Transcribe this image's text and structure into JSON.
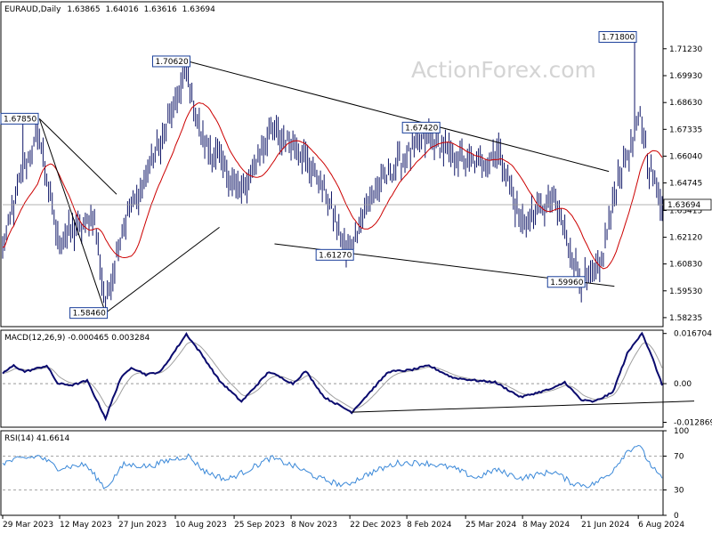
{
  "chart_data": [
    {
      "type": "ohlc",
      "symbol": "EURAUD",
      "timeframe": "Daily",
      "ohlc": [
        "1.63865",
        "1.64016",
        "1.63616",
        "1.63694"
      ],
      "watermark": "ActionForex.com",
      "ylim": [
        1.578,
        1.735
      ],
      "y_ticks": [
        "1.71230",
        "1.69930",
        "1.68630",
        "1.67335",
        "1.66040",
        "1.64745",
        "1.63415",
        "1.62120",
        "1.60830",
        "1.59530",
        "1.58235"
      ],
      "y_ticks_values": [
        1.7123,
        1.6993,
        1.6863,
        1.67335,
        1.6604,
        1.64745,
        1.63415,
        1.6212,
        1.6083,
        1.5953,
        1.58235
      ],
      "last_price": "1.63694",
      "last_price_value": 1.63694,
      "x_ticks": [
        "29 Mar 2023",
        "12 May 2023",
        "27 Jun 2023",
        "10 Aug 2023",
        "25 Sep 2023",
        "8 Nov 2023",
        "22 Dec 2023",
        "8 Feb 2024",
        "25 Mar 2024",
        "8 May 2024",
        "21 Jun 2024",
        "6 Aug 2024"
      ],
      "n_bars": 360,
      "key_points": [
        {
          "bar": 0,
          "close": 1.615
        },
        {
          "bar": 11,
          "close": 1.655
        },
        {
          "bar": 20,
          "close": 1.67
        },
        {
          "bar": 30,
          "close": 1.62
        },
        {
          "bar": 50,
          "close": 1.63
        },
        {
          "bar": 56,
          "close": 1.587
        },
        {
          "bar": 65,
          "close": 1.625
        },
        {
          "bar": 85,
          "close": 1.665
        },
        {
          "bar": 100,
          "close": 1.7
        },
        {
          "bar": 108,
          "close": 1.67
        },
        {
          "bar": 120,
          "close": 1.655
        },
        {
          "bar": 130,
          "close": 1.642
        },
        {
          "bar": 145,
          "close": 1.672
        },
        {
          "bar": 160,
          "close": 1.665
        },
        {
          "bar": 175,
          "close": 1.645
        },
        {
          "bar": 187,
          "close": 1.614
        },
        {
          "bar": 200,
          "close": 1.64
        },
        {
          "bar": 215,
          "close": 1.657
        },
        {
          "bar": 232,
          "close": 1.67
        },
        {
          "bar": 245,
          "close": 1.66
        },
        {
          "bar": 260,
          "close": 1.657
        },
        {
          "bar": 270,
          "close": 1.663
        },
        {
          "bar": 282,
          "close": 1.628
        },
        {
          "bar": 300,
          "close": 1.64
        },
        {
          "bar": 315,
          "close": 1.599
        },
        {
          "bar": 325,
          "close": 1.605
        },
        {
          "bar": 335,
          "close": 1.65
        },
        {
          "bar": 343,
          "close": 1.668
        },
        {
          "bar": 347,
          "close": 1.68
        },
        {
          "bar": 352,
          "close": 1.655
        },
        {
          "bar": 359,
          "close": 1.637
        }
      ],
      "spikes": [
        {
          "bar": 11,
          "value": 1.6785,
          "type": "high"
        },
        {
          "bar": 56,
          "value": 1.5846,
          "type": "low"
        },
        {
          "bar": 101,
          "value": 1.7062,
          "type": "high"
        },
        {
          "bar": 190,
          "value": 1.6127,
          "type": "low"
        },
        {
          "bar": 237,
          "value": 1.6742,
          "type": "high"
        },
        {
          "bar": 316,
          "value": 1.5996,
          "type": "low"
        },
        {
          "bar": 344,
          "value": 1.718,
          "type": "high"
        }
      ],
      "price_labels": [
        {
          "text": "1.67850",
          "bar": 11,
          "value": 1.6785
        },
        {
          "text": "1.58460",
          "bar": 56,
          "value": 1.5846
        },
        {
          "text": "1.70620",
          "bar": 101,
          "value": 1.7062
        },
        {
          "text": "1.61270",
          "bar": 190,
          "value": 1.6127
        },
        {
          "text": "1.67420",
          "bar": 237,
          "value": 1.6742
        },
        {
          "text": "1.59960",
          "bar": 316,
          "value": 1.5996
        },
        {
          "text": "1.71800",
          "bar": 344,
          "value": 1.718
        }
      ],
      "trendlines": [
        {
          "from": {
            "bar": 20,
            "value": 1.6785
          },
          "to": {
            "bar": 62,
            "value": 1.642
          }
        },
        {
          "from": {
            "bar": 20,
            "value": 1.6785
          },
          "to": {
            "bar": 56,
            "value": 1.5846
          }
        },
        {
          "from": {
            "bar": 56,
            "value": 1.5846
          },
          "to": {
            "bar": 118,
            "value": 1.626
          }
        },
        {
          "from": {
            "bar": 101,
            "value": 1.7062
          },
          "to": {
            "bar": 330,
            "value": 1.653
          }
        },
        {
          "from": {
            "bar": 148,
            "value": 1.618
          },
          "to": {
            "bar": 333,
            "value": 1.5975
          }
        }
      ],
      "moving_average": {
        "color": "#cc0000"
      }
    },
    {
      "type": "line",
      "title": "MACD(12,26,9) -0.000465 0.003284",
      "ylim": [
        -0.0145,
        0.0178
      ],
      "y_ticks": [
        "0.016704",
        "0.00",
        "-0.012869"
      ],
      "y_ticks_values": [
        0.016704,
        0.0,
        -0.012869
      ],
      "key_points": [
        {
          "bar": 0,
          "value": 0.0035
        },
        {
          "bar": 6,
          "value": 0.006
        },
        {
          "bar": 12,
          "value": 0.004
        },
        {
          "bar": 17,
          "value": 0.0048
        },
        {
          "bar": 24,
          "value": 0.006
        },
        {
          "bar": 30,
          "value": 0.0
        },
        {
          "bar": 38,
          "value": -0.0005
        },
        {
          "bar": 46,
          "value": 0.001
        },
        {
          "bar": 56,
          "value": -0.0115
        },
        {
          "bar": 64,
          "value": 0.0015
        },
        {
          "bar": 70,
          "value": 0.0055
        },
        {
          "bar": 78,
          "value": 0.003
        },
        {
          "bar": 86,
          "value": 0.004
        },
        {
          "bar": 100,
          "value": 0.0165
        },
        {
          "bar": 108,
          "value": 0.01
        },
        {
          "bar": 118,
          "value": 0.001
        },
        {
          "bar": 130,
          "value": -0.006
        },
        {
          "bar": 145,
          "value": 0.004
        },
        {
          "bar": 158,
          "value": 0.0
        },
        {
          "bar": 165,
          "value": 0.0042
        },
        {
          "bar": 175,
          "value": -0.0045
        },
        {
          "bar": 190,
          "value": -0.0095
        },
        {
          "bar": 210,
          "value": 0.004
        },
        {
          "bar": 222,
          "value": 0.0045
        },
        {
          "bar": 232,
          "value": 0.006
        },
        {
          "bar": 245,
          "value": 0.002
        },
        {
          "bar": 258,
          "value": 0.001
        },
        {
          "bar": 268,
          "value": 0.0005
        },
        {
          "bar": 282,
          "value": -0.0045
        },
        {
          "bar": 300,
          "value": -0.0015
        },
        {
          "bar": 306,
          "value": 0.0005
        },
        {
          "bar": 315,
          "value": -0.0055
        },
        {
          "bar": 322,
          "value": -0.006
        },
        {
          "bar": 332,
          "value": -0.003
        },
        {
          "bar": 340,
          "value": 0.01
        },
        {
          "bar": 348,
          "value": 0.017
        },
        {
          "bar": 354,
          "value": 0.008
        },
        {
          "bar": 359,
          "value": -0.0005
        }
      ],
      "signal_color": "#a0a0a0",
      "macd_color": "#0a0a6e",
      "trendline": {
        "from": {
          "bar": 190,
          "value": -0.0095
        },
        "to": {
          "bar": 379,
          "value": -0.0058
        }
      }
    },
    {
      "type": "line",
      "title": "RSI(14) 41.6614",
      "ylim": [
        0,
        100
      ],
      "y_ticks": [
        "100",
        "70",
        "30",
        "0"
      ],
      "y_ticks_values": [
        100,
        70,
        30,
        0
      ],
      "key_points": [
        {
          "bar": 0,
          "value": 62
        },
        {
          "bar": 10,
          "value": 67
        },
        {
          "bar": 20,
          "value": 70
        },
        {
          "bar": 30,
          "value": 56
        },
        {
          "bar": 45,
          "value": 60
        },
        {
          "bar": 56,
          "value": 32
        },
        {
          "bar": 66,
          "value": 60
        },
        {
          "bar": 80,
          "value": 58
        },
        {
          "bar": 92,
          "value": 66
        },
        {
          "bar": 101,
          "value": 70
        },
        {
          "bar": 110,
          "value": 52
        },
        {
          "bar": 122,
          "value": 42
        },
        {
          "bar": 132,
          "value": 52
        },
        {
          "bar": 146,
          "value": 68
        },
        {
          "bar": 160,
          "value": 57
        },
        {
          "bar": 172,
          "value": 44
        },
        {
          "bar": 186,
          "value": 35
        },
        {
          "bar": 200,
          "value": 50
        },
        {
          "bar": 215,
          "value": 62
        },
        {
          "bar": 230,
          "value": 62
        },
        {
          "bar": 245,
          "value": 56
        },
        {
          "bar": 258,
          "value": 44
        },
        {
          "bar": 268,
          "value": 54
        },
        {
          "bar": 282,
          "value": 44
        },
        {
          "bar": 300,
          "value": 52
        },
        {
          "bar": 310,
          "value": 38
        },
        {
          "bar": 320,
          "value": 35
        },
        {
          "bar": 330,
          "value": 48
        },
        {
          "bar": 340,
          "value": 76
        },
        {
          "bar": 346,
          "value": 84
        },
        {
          "bar": 352,
          "value": 62
        },
        {
          "bar": 359,
          "value": 42
        }
      ],
      "color": "#3a88d8"
    }
  ],
  "colors": {
    "bars": "#0d1466",
    "grid": "#c9c9c9",
    "panel_border": "#000000",
    "label_box": "#1a3f9a",
    "ma": "#cc0000"
  }
}
